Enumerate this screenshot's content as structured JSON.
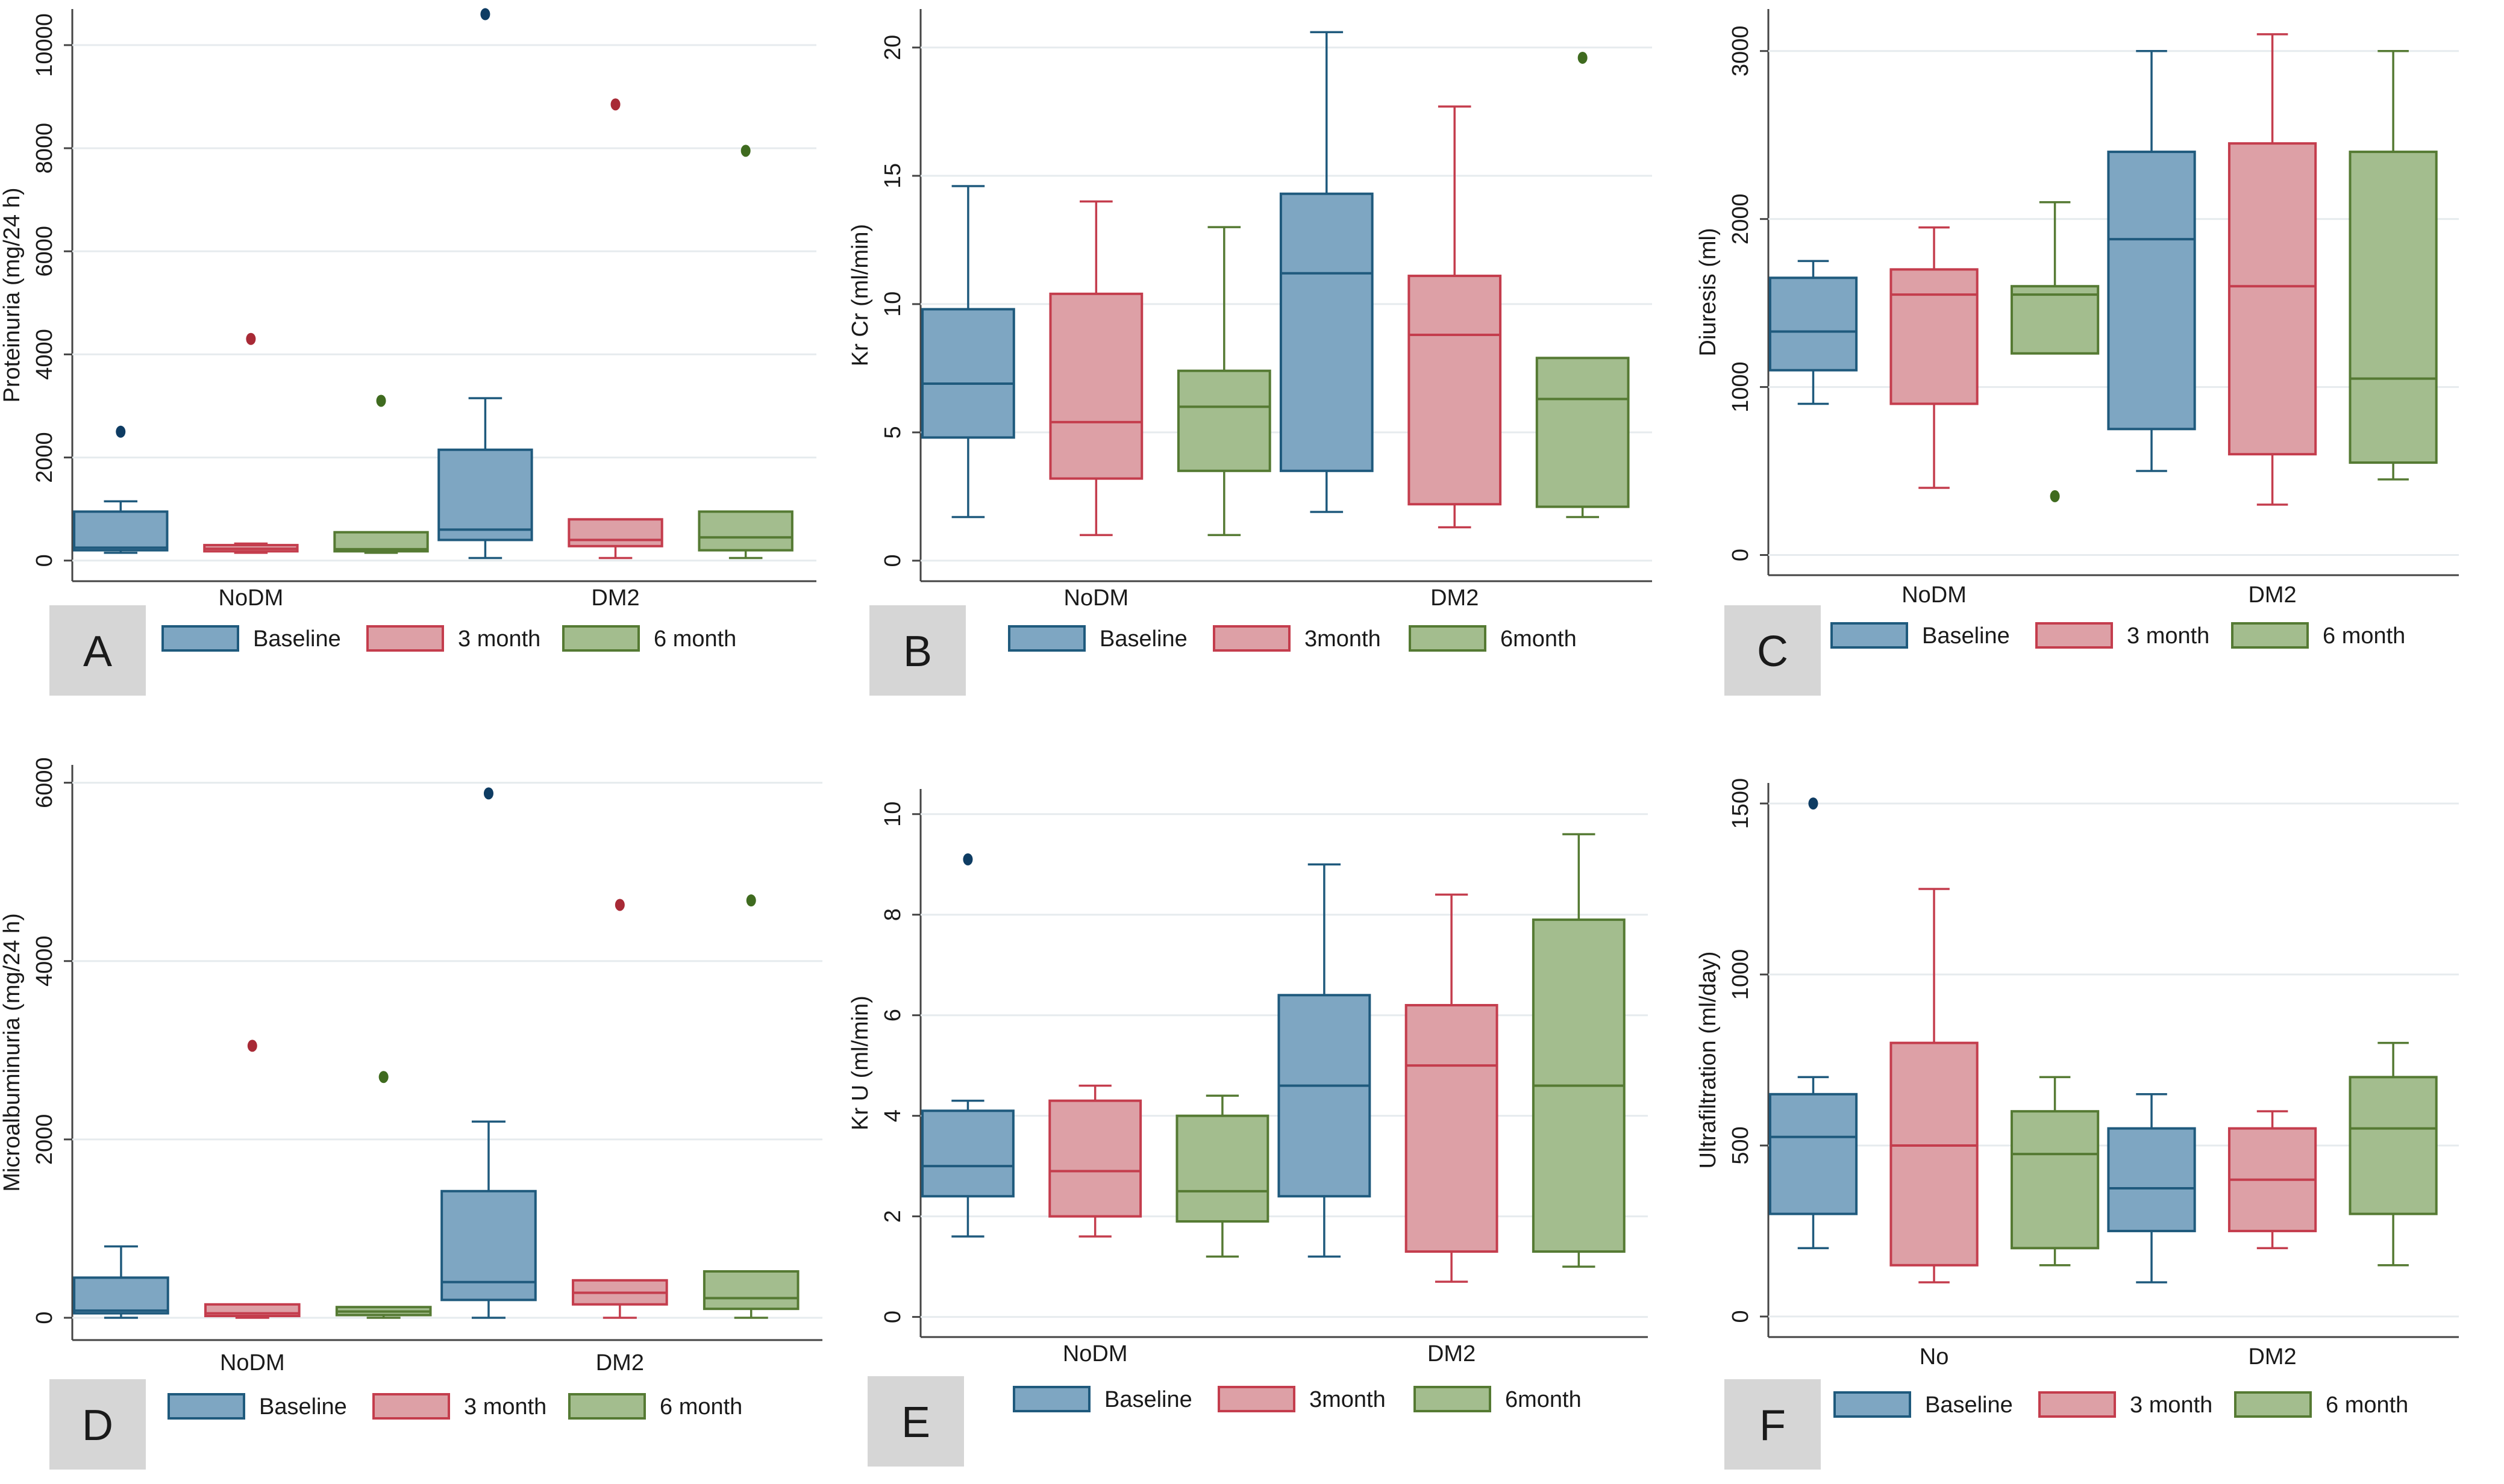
{
  "colors": {
    "series": [
      {
        "fill": "#7ea6c2",
        "stroke": "#1f5a7d",
        "dot": "#0e3c63"
      },
      {
        "fill": "#dda0a6",
        "stroke": "#c43d4d",
        "dot": "#a82a36"
      },
      {
        "fill": "#a3bd8e",
        "stroke": "#557a33",
        "dot": "#3f6b1f"
      }
    ],
    "grid": "#e6ebee",
    "axis": "#444444",
    "text": "#1a1a1a",
    "panel_tag_bg": "#d6d6d6"
  },
  "chart_data": [
    {
      "panel": "A",
      "type": "box",
      "ylabel": "Proteinuria (mg/24 h)",
      "ylim": [
        -400,
        10700
      ],
      "yticks": [
        0,
        2000,
        4000,
        6000,
        8000,
        10000
      ],
      "categories": [
        "NoDM",
        "DM2"
      ],
      "legend": [
        "Baseline",
        "3 month",
        "6 month"
      ],
      "series": [
        {
          "name": "Baseline",
          "boxes": [
            {
              "whislo": 150,
              "q1": 200,
              "med": 250,
              "q3": 950,
              "whishi": 1150,
              "fliers": [
                2500
              ]
            },
            {
              "whislo": 50,
              "q1": 400,
              "med": 600,
              "q3": 2150,
              "whishi": 3150,
              "fliers": [
                10600
              ]
            }
          ]
        },
        {
          "name": "3 month",
          "boxes": [
            {
              "whislo": 150,
              "q1": 180,
              "med": 230,
              "q3": 300,
              "whishi": 330,
              "fliers": [
                4300
              ]
            },
            {
              "whislo": 50,
              "q1": 280,
              "med": 400,
              "q3": 800,
              "whishi": 800,
              "fliers": [
                8850
              ]
            }
          ]
        },
        {
          "name": "6 month",
          "boxes": [
            {
              "whislo": 150,
              "q1": 180,
              "med": 220,
              "q3": 550,
              "whishi": 550,
              "fliers": [
                3100
              ]
            },
            {
              "whislo": 50,
              "q1": 200,
              "med": 450,
              "q3": 950,
              "whishi": 950,
              "fliers": [
                7950
              ]
            }
          ]
        }
      ]
    },
    {
      "panel": "B",
      "type": "box",
      "ylabel": "Kr Cr (ml/min)",
      "ylim": [
        -0.8,
        21.5
      ],
      "yticks": [
        0,
        5,
        10,
        15,
        20
      ],
      "categories": [
        "NoDM",
        "DM2"
      ],
      "legend": [
        "Baseline",
        "3month",
        "6month"
      ],
      "series": [
        {
          "name": "Baseline",
          "boxes": [
            {
              "whislo": 1.7,
              "q1": 4.8,
              "med": 6.9,
              "q3": 9.8,
              "whishi": 14.6,
              "fliers": []
            },
            {
              "whislo": 1.9,
              "q1": 3.5,
              "med": 11.2,
              "q3": 14.3,
              "whishi": 20.6,
              "fliers": []
            }
          ]
        },
        {
          "name": "3 month",
          "boxes": [
            {
              "whislo": 1.0,
              "q1": 3.2,
              "med": 5.4,
              "q3": 10.4,
              "whishi": 14.0,
              "fliers": []
            },
            {
              "whislo": 1.3,
              "q1": 2.2,
              "med": 8.8,
              "q3": 11.1,
              "whishi": 17.7,
              "fliers": []
            }
          ]
        },
        {
          "name": "6 month",
          "boxes": [
            {
              "whislo": 1.0,
              "q1": 3.5,
              "med": 6.0,
              "q3": 7.4,
              "whishi": 13.0,
              "fliers": []
            },
            {
              "whislo": 1.7,
              "q1": 2.1,
              "med": 6.3,
              "q3": 7.9,
              "whishi": 7.9,
              "fliers": [
                19.6
              ]
            }
          ]
        }
      ]
    },
    {
      "panel": "C",
      "type": "box",
      "ylabel": "Diuresis (ml)",
      "ylim": [
        -120,
        3250
      ],
      "yticks": [
        0,
        1000,
        2000,
        3000
      ],
      "categories": [
        "NoDM",
        "DM2"
      ],
      "legend": [
        "Baseline",
        "3 month",
        "6 month"
      ],
      "series": [
        {
          "name": "Baseline",
          "boxes": [
            {
              "whislo": 900,
              "q1": 1100,
              "med": 1330,
              "q3": 1650,
              "whishi": 1750,
              "fliers": []
            },
            {
              "whislo": 500,
              "q1": 750,
              "med": 1880,
              "q3": 2400,
              "whishi": 3000,
              "fliers": []
            }
          ]
        },
        {
          "name": "3 month",
          "boxes": [
            {
              "whislo": 400,
              "q1": 900,
              "med": 1550,
              "q3": 1700,
              "whishi": 1950,
              "fliers": []
            },
            {
              "whislo": 300,
              "q1": 600,
              "med": 1600,
              "q3": 2450,
              "whishi": 3100,
              "fliers": []
            }
          ]
        },
        {
          "name": "6 month",
          "boxes": [
            {
              "whislo": 1200,
              "q1": 1200,
              "med": 1550,
              "q3": 1600,
              "whishi": 2100,
              "fliers": [
                350
              ]
            },
            {
              "whislo": 450,
              "q1": 550,
              "med": 1050,
              "q3": 2400,
              "whishi": 3000,
              "fliers": []
            }
          ]
        }
      ]
    },
    {
      "panel": "D",
      "type": "box",
      "ylabel": "Microalbuminuria (mg/24 h)",
      "ylim": [
        -250,
        6200
      ],
      "yticks": [
        0,
        2000,
        4000,
        6000
      ],
      "categories": [
        "NoDM",
        "DM2"
      ],
      "legend": [
        "Baseline",
        "3 month",
        "6 month"
      ],
      "series": [
        {
          "name": "Baseline",
          "boxes": [
            {
              "whislo": 0,
              "q1": 50,
              "med": 80,
              "q3": 450,
              "whishi": 800,
              "fliers": []
            },
            {
              "whislo": 0,
              "q1": 200,
              "med": 400,
              "q3": 1420,
              "whishi": 2200,
              "fliers": [
                5880
              ]
            }
          ]
        },
        {
          "name": "3 month",
          "boxes": [
            {
              "whislo": 0,
              "q1": 20,
              "med": 50,
              "q3": 150,
              "whishi": 150,
              "fliers": [
                3050
              ]
            },
            {
              "whislo": 0,
              "q1": 150,
              "med": 280,
              "q3": 420,
              "whishi": 420,
              "fliers": [
                4630
              ]
            }
          ]
        },
        {
          "name": "6 month",
          "boxes": [
            {
              "whislo": 0,
              "q1": 30,
              "med": 70,
              "q3": 120,
              "whishi": 120,
              "fliers": [
                2700
              ]
            },
            {
              "whislo": 0,
              "q1": 100,
              "med": 220,
              "q3": 520,
              "whishi": 520,
              "fliers": [
                4680
              ]
            }
          ]
        }
      ]
    },
    {
      "panel": "E",
      "type": "box",
      "ylabel": "Kr U (ml/min)",
      "ylim": [
        -0.4,
        10.5
      ],
      "yticks": [
        0,
        2,
        4,
        6,
        8,
        10
      ],
      "categories": [
        "NoDM",
        "DM2"
      ],
      "legend": [
        "Baseline",
        "3month",
        "6month"
      ],
      "series": [
        {
          "name": "Baseline",
          "boxes": [
            {
              "whislo": 1.6,
              "q1": 2.4,
              "med": 3.0,
              "q3": 4.1,
              "whishi": 4.3,
              "fliers": [
                9.1
              ]
            },
            {
              "whislo": 1.2,
              "q1": 2.4,
              "med": 4.6,
              "q3": 6.4,
              "whishi": 9.0,
              "fliers": []
            }
          ]
        },
        {
          "name": "3 month",
          "boxes": [
            {
              "whislo": 1.6,
              "q1": 2.0,
              "med": 2.9,
              "q3": 4.3,
              "whishi": 4.6,
              "fliers": []
            },
            {
              "whislo": 0.7,
              "q1": 1.3,
              "med": 5.0,
              "q3": 6.2,
              "whishi": 8.4,
              "fliers": []
            }
          ]
        },
        {
          "name": "6 month",
          "boxes": [
            {
              "whislo": 1.2,
              "q1": 1.9,
              "med": 2.5,
              "q3": 4.0,
              "whishi": 4.4,
              "fliers": []
            },
            {
              "whislo": 1.0,
              "q1": 1.3,
              "med": 4.6,
              "q3": 7.9,
              "whishi": 9.6,
              "fliers": []
            }
          ]
        }
      ]
    },
    {
      "panel": "F",
      "type": "box",
      "ylabel": "Ultrafiltration (ml/day)",
      "ylim": [
        -60,
        1560
      ],
      "yticks": [
        0,
        500,
        1000,
        1500
      ],
      "categories": [
        "No",
        "DM2"
      ],
      "legend": [
        "Baseline",
        "3 month",
        "6 month"
      ],
      "series": [
        {
          "name": "Baseline",
          "boxes": [
            {
              "whislo": 200,
              "q1": 300,
              "med": 525,
              "q3": 650,
              "whishi": 700,
              "fliers": [
                1500
              ]
            },
            {
              "whislo": 100,
              "q1": 250,
              "med": 375,
              "q3": 550,
              "whishi": 650,
              "fliers": []
            }
          ]
        },
        {
          "name": "3 month",
          "boxes": [
            {
              "whislo": 100,
              "q1": 150,
              "med": 500,
              "q3": 800,
              "whishi": 1250,
              "fliers": []
            },
            {
              "whislo": 200,
              "q1": 250,
              "med": 400,
              "q3": 550,
              "whishi": 600,
              "fliers": []
            }
          ]
        },
        {
          "name": "6 month",
          "boxes": [
            {
              "whislo": 150,
              "q1": 200,
              "med": 475,
              "q3": 600,
              "whishi": 700,
              "fliers": []
            },
            {
              "whislo": 150,
              "q1": 300,
              "med": 550,
              "q3": 700,
              "whishi": 800,
              "fliers": []
            }
          ]
        }
      ]
    }
  ]
}
